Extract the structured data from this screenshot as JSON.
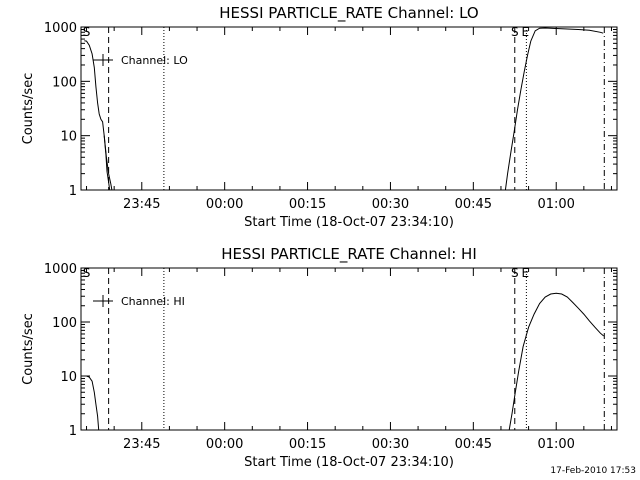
{
  "footer": {
    "timestamp": "17-Feb-2010 17:53"
  },
  "chart_data": [
    {
      "type": "line",
      "title": "HESSI PARTICLE_RATE Channel: LO",
      "xlabel": "Start Time (18-Oct-07 23:34:10)",
      "ylabel": "Counts/sec",
      "y_scale": "log",
      "ylim": [
        1,
        1000
      ],
      "xlim_minutes": [
        -26,
        71
      ],
      "x_ticks": [
        {
          "t": -15,
          "label": "23:45"
        },
        {
          "t": 0,
          "label": "00:00"
        },
        {
          "t": 15,
          "label": "00:15"
        },
        {
          "t": 30,
          "label": "00:30"
        },
        {
          "t": 45,
          "label": "00:45"
        },
        {
          "t": 60,
          "label": "01:00"
        }
      ],
      "y_ticks": [
        {
          "v": 1,
          "label": "1"
        },
        {
          "v": 10,
          "label": "10"
        },
        {
          "v": 100,
          "label": "100"
        },
        {
          "v": 1000,
          "label": "1000"
        }
      ],
      "legend": {
        "label": "Channel: LO",
        "position": "top-left"
      },
      "markers": [
        {
          "t": -25,
          "label": "S"
        },
        {
          "t": 52.5,
          "label": "S"
        },
        {
          "t": 54.4,
          "label": "E"
        }
      ],
      "vlines": [
        {
          "t": -21,
          "style": "dashed"
        },
        {
          "t": -11,
          "style": "dotted"
        },
        {
          "t": 52.5,
          "style": "dashed"
        },
        {
          "t": 54.6,
          "style": "dotted"
        },
        {
          "t": 68.7,
          "style": "dashdot"
        }
      ],
      "series": [
        {
          "segments": [
            [
              [
                -25.4,
                560
              ],
              [
                -25,
                550
              ],
              [
                -24.5,
                460
              ],
              [
                -24,
                320
              ],
              [
                -23.6,
                180
              ],
              [
                -23.3,
                80
              ],
              [
                -23,
                40
              ],
              [
                -22.7,
                25
              ],
              [
                -22.4,
                20
              ],
              [
                -22.1,
                18
              ],
              [
                -21.8,
                10
              ],
              [
                -21.5,
                4.5
              ],
              [
                -21.3,
                2.2
              ],
              [
                -21.0,
                1.4
              ],
              [
                -20.8,
                1.0
              ]
            ],
            [
              [
                -21.8,
                10
              ],
              [
                -21.4,
                4
              ],
              [
                -21.0,
                2
              ],
              [
                -20.6,
                1.3
              ],
              [
                -20.4,
                1.0
              ]
            ],
            [
              [
                50.8,
                1.0
              ],
              [
                51.2,
                2.0
              ],
              [
                51.8,
                5
              ],
              [
                52.4,
                12
              ],
              [
                53.0,
                30
              ],
              [
                53.6,
                70
              ],
              [
                54.2,
                150
              ],
              [
                54.8,
                300
              ],
              [
                55.4,
                550
              ],
              [
                56.2,
                850
              ],
              [
                57,
                950
              ],
              [
                58,
                960
              ],
              [
                60,
                940
              ],
              [
                62,
                920
              ],
              [
                64,
                900
              ],
              [
                66,
                870
              ],
              [
                68,
                800
              ],
              [
                68.5,
                770
              ]
            ]
          ]
        }
      ]
    },
    {
      "type": "line",
      "title": "HESSI PARTICLE_RATE Channel: HI",
      "xlabel": "Start Time (18-Oct-07 23:34:10)",
      "ylabel": "Counts/sec",
      "y_scale": "log",
      "ylim": [
        1,
        1000
      ],
      "xlim_minutes": [
        -26,
        71
      ],
      "x_ticks": [
        {
          "t": -15,
          "label": "23:45"
        },
        {
          "t": 0,
          "label": "00:00"
        },
        {
          "t": 15,
          "label": "00:15"
        },
        {
          "t": 30,
          "label": "00:30"
        },
        {
          "t": 45,
          "label": "00:45"
        },
        {
          "t": 60,
          "label": "01:00"
        }
      ],
      "y_ticks": [
        {
          "v": 1,
          "label": "1"
        },
        {
          "v": 10,
          "label": "10"
        },
        {
          "v": 100,
          "label": "100"
        },
        {
          "v": 1000,
          "label": "1000"
        }
      ],
      "legend": {
        "label": "Channel: HI",
        "position": "top-left"
      },
      "markers": [
        {
          "t": -25,
          "label": "S"
        },
        {
          "t": 52.5,
          "label": "S"
        },
        {
          "t": 54.4,
          "label": "E"
        }
      ],
      "vlines": [
        {
          "t": -21,
          "style": "dashed"
        },
        {
          "t": -11,
          "style": "dotted"
        },
        {
          "t": 52.5,
          "style": "dashed"
        },
        {
          "t": 54.6,
          "style": "dotted"
        },
        {
          "t": 68.7,
          "style": "dashdot"
        }
      ],
      "series": [
        {
          "segments": [
            [
              [
                -25.4,
                10
              ],
              [
                -25,
                10
              ],
              [
                -24.5,
                9.5
              ],
              [
                -24,
                8
              ],
              [
                -23.6,
                5
              ],
              [
                -23.3,
                3
              ],
              [
                -23,
                1.8
              ],
              [
                -22.8,
                1.0
              ]
            ],
            [
              [
                51.5,
                1.0
              ],
              [
                52,
                2
              ],
              [
                52.6,
                5
              ],
              [
                53.2,
                12
              ],
              [
                54,
                35
              ],
              [
                55,
                80
              ],
              [
                56,
                140
              ],
              [
                57,
                220
              ],
              [
                58,
                290
              ],
              [
                59,
                330
              ],
              [
                60,
                340
              ],
              [
                61,
                330
              ],
              [
                62,
                290
              ],
              [
                63,
                230
              ],
              [
                64,
                180
              ],
              [
                65,
                140
              ],
              [
                66,
                105
              ],
              [
                67,
                80
              ],
              [
                68,
                62
              ],
              [
                68.6,
                55
              ]
            ]
          ]
        }
      ]
    }
  ]
}
